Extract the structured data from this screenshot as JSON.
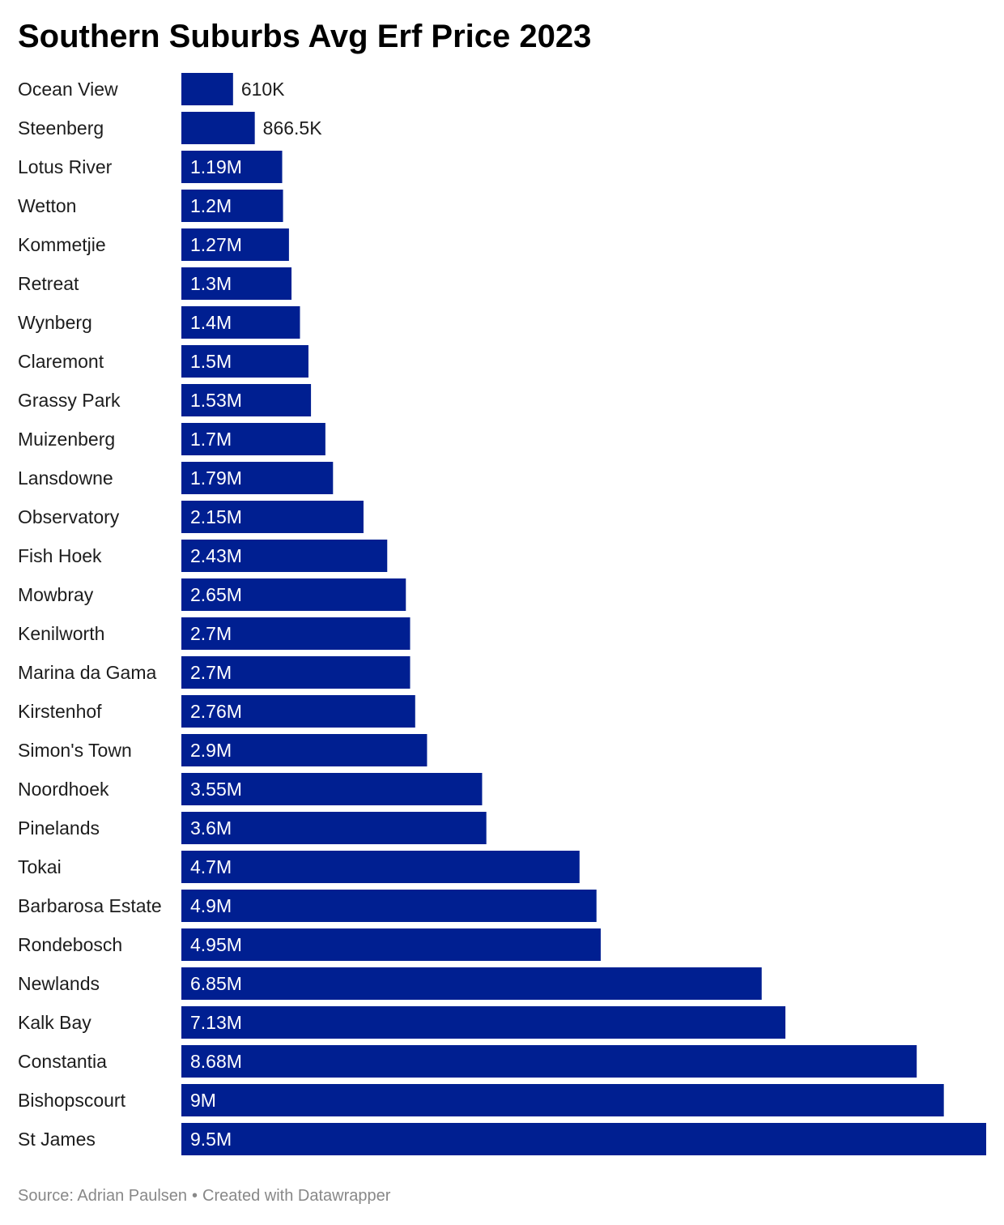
{
  "title": "Southern Suburbs Avg Erf Price 2023",
  "footer": {
    "source": "Source: Adrian Paulsen",
    "separator": "•",
    "credit": "Created with Datawrapper"
  },
  "colors": {
    "bar": "#001f91",
    "label_inside": "#ffffff",
    "label_outside": "#1d1d1d"
  },
  "chart_data": {
    "type": "bar",
    "orientation": "horizontal",
    "title": "Southern Suburbs Avg Erf Price 2023",
    "xlabel": "",
    "ylabel": "",
    "xlim": [
      0,
      9500000
    ],
    "grid": false,
    "categories": [
      "Ocean View",
      "Steenberg",
      "Lotus River",
      "Wetton",
      "Kommetjie",
      "Retreat",
      "Wynberg",
      "Claremont",
      "Grassy Park",
      "Muizenberg",
      "Lansdowne",
      "Observatory",
      "Fish Hoek",
      "Mowbray",
      "Kenilworth",
      "Marina da Gama",
      "Kirstenhof",
      "Simon's Town",
      "Noordhoek",
      "Pinelands",
      "Tokai",
      "Barbarosa Estate",
      "Rondebosch",
      "Newlands",
      "Kalk Bay",
      "Constantia",
      "Bishopscourt",
      "St James"
    ],
    "values": [
      610000,
      866500,
      1190000,
      1200000,
      1270000,
      1300000,
      1400000,
      1500000,
      1530000,
      1700000,
      1790000,
      2150000,
      2430000,
      2650000,
      2700000,
      2700000,
      2760000,
      2900000,
      3550000,
      3600000,
      4700000,
      4900000,
      4950000,
      6850000,
      7130000,
      8680000,
      9000000,
      9500000
    ],
    "value_labels": [
      "610K",
      "866.5K",
      "1.19M",
      "1.2M",
      "1.27M",
      "1.3M",
      "1.4M",
      "1.5M",
      "1.53M",
      "1.7M",
      "1.79M",
      "2.15M",
      "2.43M",
      "2.65M",
      "2.7M",
      "2.7M",
      "2.76M",
      "2.9M",
      "3.55M",
      "3.6M",
      "4.7M",
      "4.9M",
      "4.95M",
      "6.85M",
      "7.13M",
      "8.68M",
      "9M",
      "9.5M"
    ]
  }
}
